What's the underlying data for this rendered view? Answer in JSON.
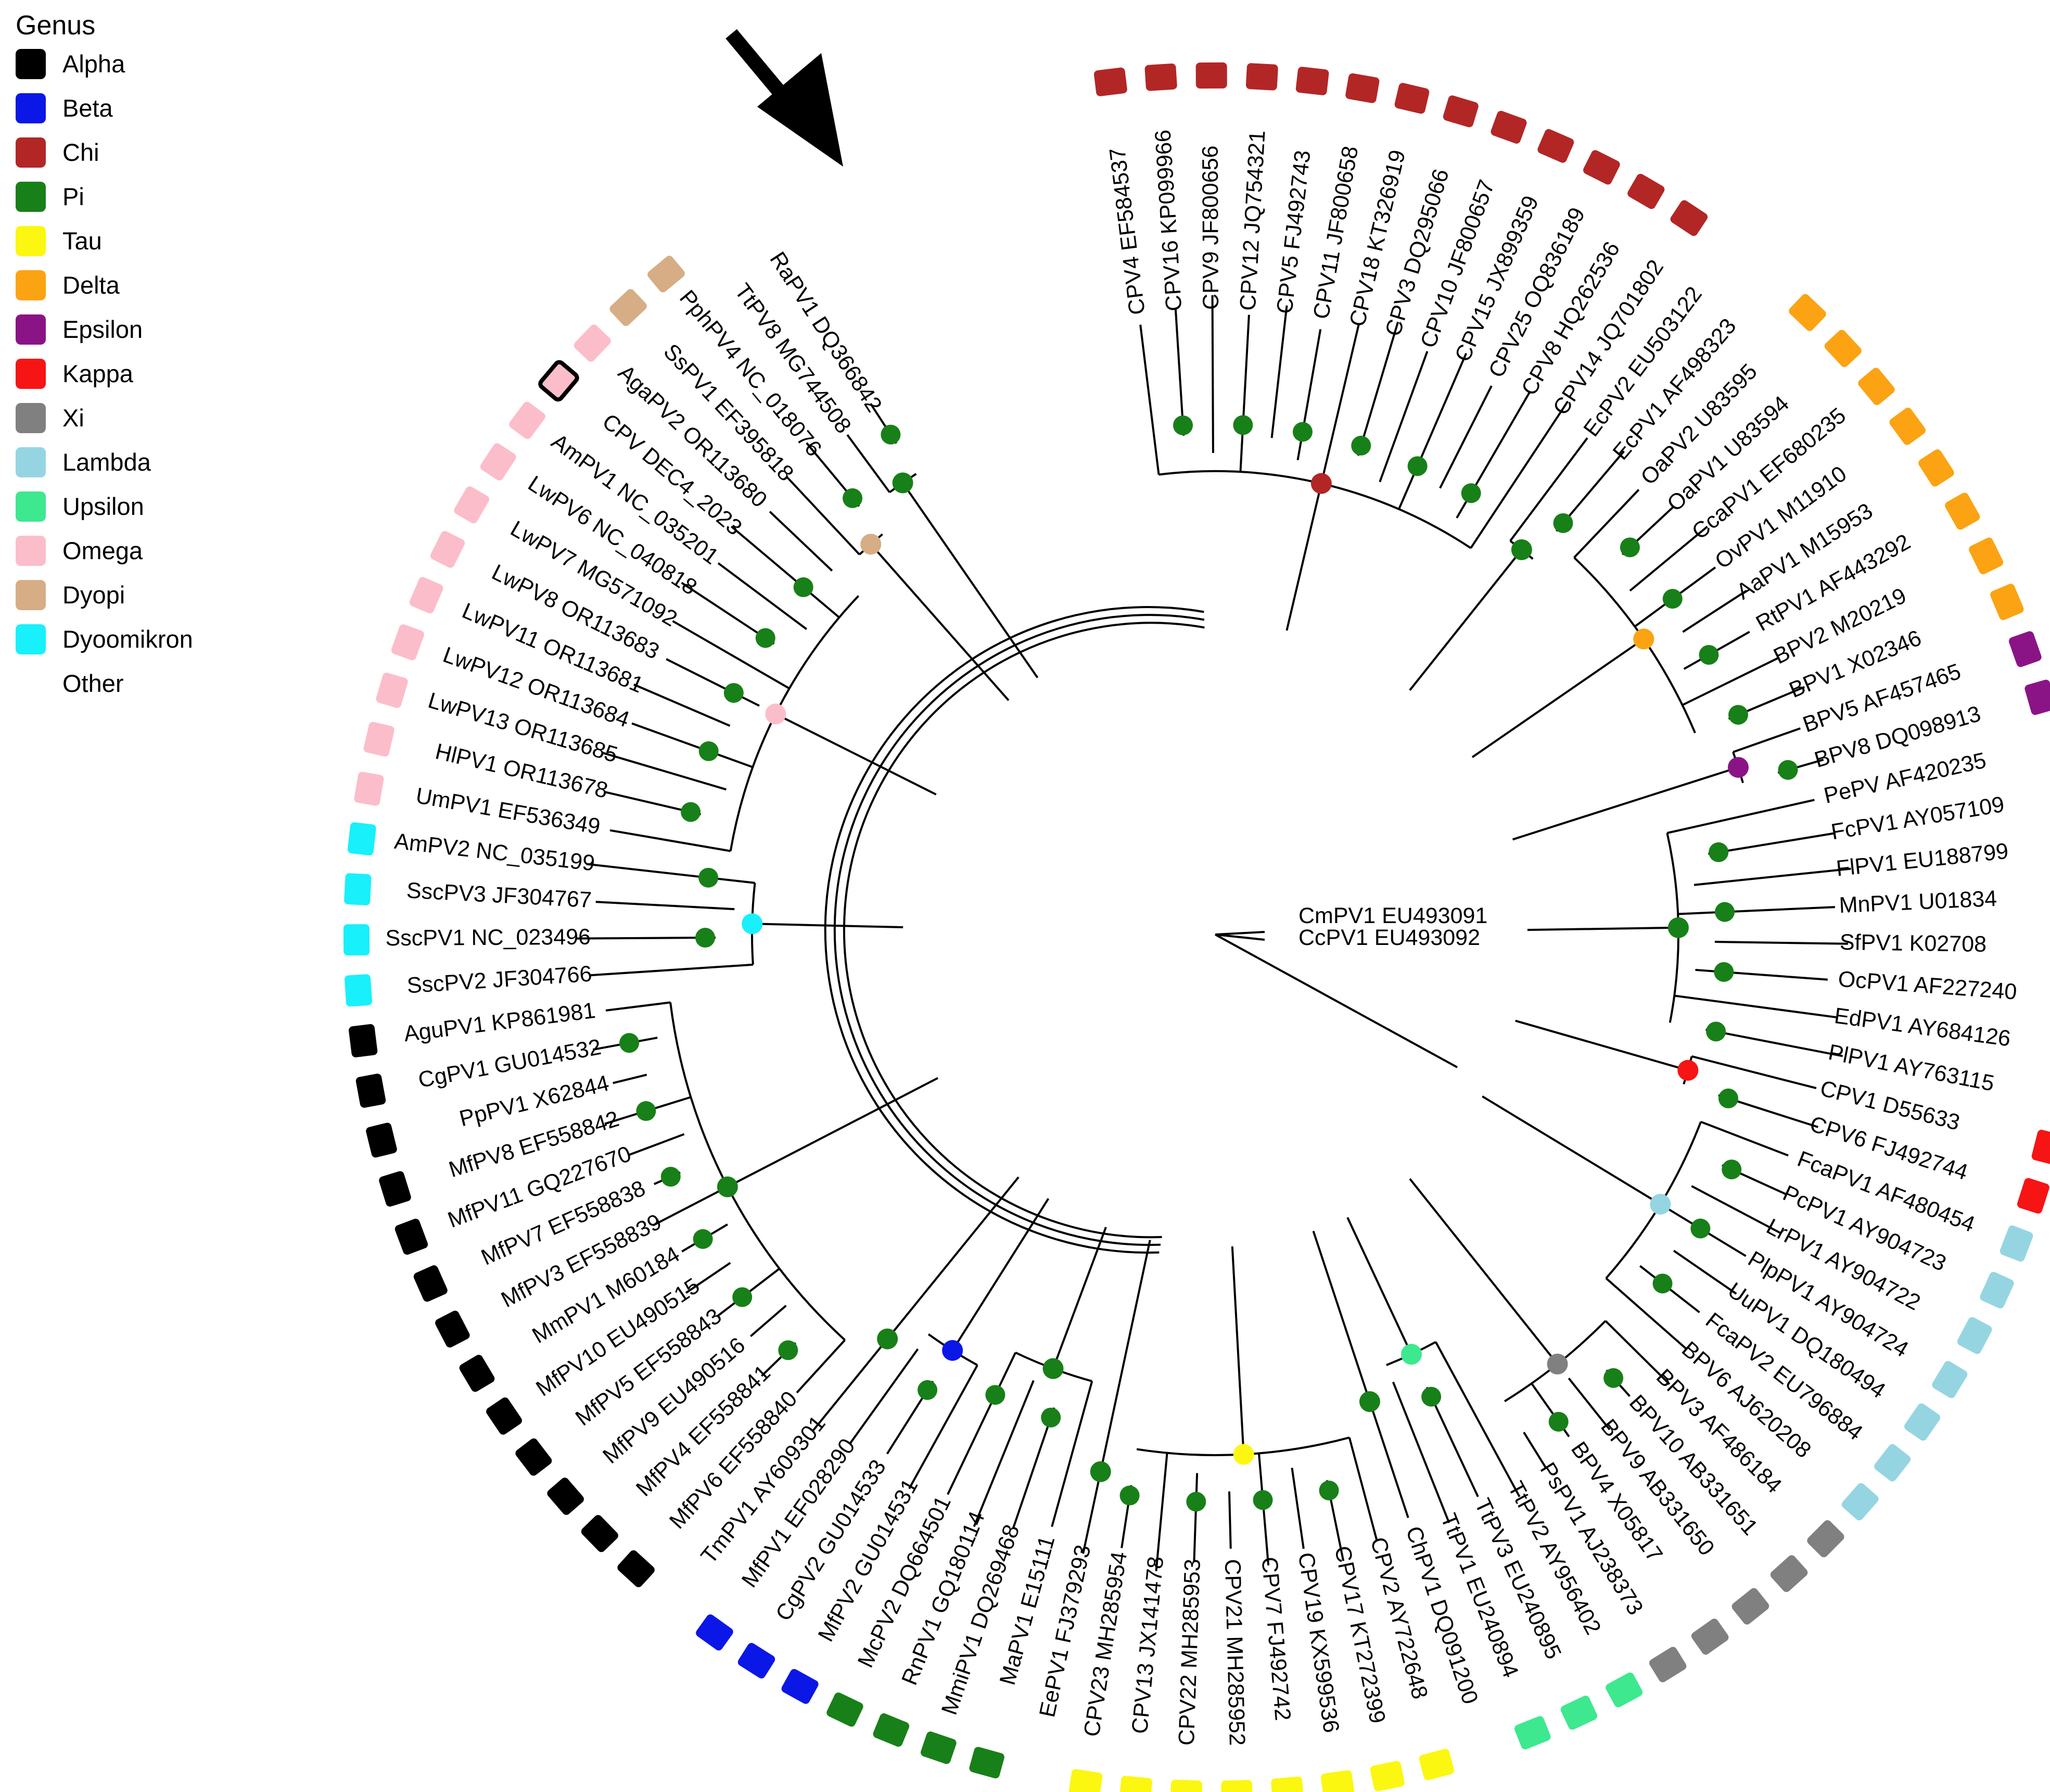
{
  "legend": {
    "title": "Genus",
    "items": [
      {
        "key": "alpha",
        "label": "Alpha",
        "color": "#000000"
      },
      {
        "key": "beta",
        "label": "Beta",
        "color": "#0b17e6"
      },
      {
        "key": "chi",
        "label": "Chi",
        "color": "#b32626"
      },
      {
        "key": "pi",
        "label": "Pi",
        "color": "#188018"
      },
      {
        "key": "tau",
        "label": "Tau",
        "color": "#fbf710"
      },
      {
        "key": "delta",
        "label": "Delta",
        "color": "#fba313"
      },
      {
        "key": "epsilon",
        "label": "Epsilon",
        "color": "#8a1486"
      },
      {
        "key": "kappa",
        "label": "Kappa",
        "color": "#f71414"
      },
      {
        "key": "xi",
        "label": "Xi",
        "color": "#808080"
      },
      {
        "key": "lambda",
        "label": "Lambda",
        "color": "#95d5e2"
      },
      {
        "key": "upsilon",
        "label": "Upsilon",
        "color": "#3de88f"
      },
      {
        "key": "omega",
        "label": "Omega",
        "color": "#fcbdca"
      },
      {
        "key": "dyopi",
        "label": "Dyopi",
        "color": "#d6ad85"
      },
      {
        "key": "dyoomikron",
        "label": "Dyoomikron",
        "color": "#18f0fb"
      },
      {
        "key": "other",
        "label": "Other",
        "color": "#ffffff"
      }
    ]
  },
  "root_labels": [
    "CmPV1 EU493091",
    "CcPV1 EU493092"
  ],
  "tips": [
    {
      "label": "CPV4 EF584537",
      "genus": "chi"
    },
    {
      "label": "CPV16 KP099966",
      "genus": "chi"
    },
    {
      "label": "CPV9 JF800656",
      "genus": "chi"
    },
    {
      "label": "CPV12 JQ754321",
      "genus": "chi"
    },
    {
      "label": "CPV5 FJ492743",
      "genus": "chi"
    },
    {
      "label": "CPV11 JF800658",
      "genus": "chi"
    },
    {
      "label": "CPV18 KT326919",
      "genus": "chi"
    },
    {
      "label": "CPV3 DQ295066",
      "genus": "chi"
    },
    {
      "label": "CPV10 JF800657",
      "genus": "chi"
    },
    {
      "label": "CPV15 JX899359",
      "genus": "chi"
    },
    {
      "label": "CPV25 OQ836189",
      "genus": "chi"
    },
    {
      "label": "CPV8 HQ262536",
      "genus": "chi"
    },
    {
      "label": "CPV14 JQ701802",
      "genus": "chi"
    },
    {
      "label": "EcPV2 EU503122",
      "genus": "other"
    },
    {
      "label": "EcPV1 AF498323",
      "genus": "other"
    },
    {
      "label": "OaPV2 U83595",
      "genus": "delta"
    },
    {
      "label": "OaPV1 U83594",
      "genus": "delta"
    },
    {
      "label": "CcaPV1 EF680235",
      "genus": "delta"
    },
    {
      "label": "OvPV1 M11910",
      "genus": "delta"
    },
    {
      "label": "AaPV1 M15953",
      "genus": "delta"
    },
    {
      "label": "RtPV1 AF443292",
      "genus": "delta"
    },
    {
      "label": "BPV2 M20219",
      "genus": "delta"
    },
    {
      "label": "BPV1 X02346",
      "genus": "delta"
    },
    {
      "label": "BPV5 AF457465",
      "genus": "epsilon"
    },
    {
      "label": "BPV8 DQ098913",
      "genus": "epsilon"
    },
    {
      "label": "PePV AF420235",
      "genus": "other"
    },
    {
      "label": "FcPV1 AY057109",
      "genus": "other"
    },
    {
      "label": "FlPV1 EU188799",
      "genus": "other"
    },
    {
      "label": "MnPV1 U01834",
      "genus": "other"
    },
    {
      "label": "SfPV1 K02708",
      "genus": "other"
    },
    {
      "label": "OcPV1 AF227240",
      "genus": "other"
    },
    {
      "label": "EdPV1 AY684126",
      "genus": "other"
    },
    {
      "label": "PlPV1 AY763115",
      "genus": "other"
    },
    {
      "label": "CPV1 D55633",
      "genus": "kappa"
    },
    {
      "label": "CPV6 FJ492744",
      "genus": "kappa"
    },
    {
      "label": "FcaPV1 AF480454",
      "genus": "lambda"
    },
    {
      "label": "PcPV1 AY904723",
      "genus": "lambda"
    },
    {
      "label": "LrPV1 AY904722",
      "genus": "lambda"
    },
    {
      "label": "PlpPV1 AY904724",
      "genus": "lambda"
    },
    {
      "label": "UuPV1 DQ180494",
      "genus": "lambda"
    },
    {
      "label": "FcaPV2 EU796884",
      "genus": "lambda"
    },
    {
      "label": "BPV6 AJ620208",
      "genus": "lambda"
    },
    {
      "label": "BPV3 AF486184",
      "genus": "xi"
    },
    {
      "label": "BPV10 AB331651",
      "genus": "xi"
    },
    {
      "label": "BPV9 AB331650",
      "genus": "xi"
    },
    {
      "label": "BPV4 X05817",
      "genus": "xi"
    },
    {
      "label": "PsPV1 AJ238373",
      "genus": "xi"
    },
    {
      "label": "TtPV2 AY956402",
      "genus": "upsilon"
    },
    {
      "label": "TtPV3 EU240895",
      "genus": "upsilon"
    },
    {
      "label": "TtPV1 EU240894",
      "genus": "upsilon"
    },
    {
      "label": "ChPV1 DQ091200",
      "genus": "other"
    },
    {
      "label": "CPV2 AY722648",
      "genus": "tau"
    },
    {
      "label": "CPV17 KT272399",
      "genus": "tau"
    },
    {
      "label": "CPV19 KX599536",
      "genus": "tau"
    },
    {
      "label": "CPV7 FJ492742",
      "genus": "tau"
    },
    {
      "label": "CPV21 MH285952",
      "genus": "tau"
    },
    {
      "label": "CPV22 MH285953",
      "genus": "tau"
    },
    {
      "label": "CPV13 JX141478",
      "genus": "tau"
    },
    {
      "label": "CPV23 MH285954",
      "genus": "tau"
    },
    {
      "label": "EePV1 FJ379293",
      "genus": "other"
    },
    {
      "label": "MaPV1 E15111",
      "genus": "pi"
    },
    {
      "label": "MmiPV1 DQ269468",
      "genus": "pi"
    },
    {
      "label": "RnPV1 GQ180114",
      "genus": "pi"
    },
    {
      "label": "McPV2 DQ664501",
      "genus": "pi"
    },
    {
      "label": "MfPV2 GU014531",
      "genus": "beta"
    },
    {
      "label": "CgPV2 GU014533",
      "genus": "beta"
    },
    {
      "label": "MfPV1 EF028290",
      "genus": "beta"
    },
    {
      "label": "TmPV1 AY609301",
      "genus": "other"
    },
    {
      "label": "MfPV6 EF558840",
      "genus": "alpha"
    },
    {
      "label": "MfPV4 EF558841",
      "genus": "alpha"
    },
    {
      "label": "MfPV9 EU490516",
      "genus": "alpha"
    },
    {
      "label": "MfPV5 EF558843",
      "genus": "alpha"
    },
    {
      "label": "MfPV10 EU490515",
      "genus": "alpha"
    },
    {
      "label": "MmPV1 M60184",
      "genus": "alpha"
    },
    {
      "label": "MfPV3 EF558839",
      "genus": "alpha"
    },
    {
      "label": "MfPV7 EF558838",
      "genus": "alpha"
    },
    {
      "label": "MfPV11 GQ227670",
      "genus": "alpha"
    },
    {
      "label": "MfPV8 EF558842",
      "genus": "alpha"
    },
    {
      "label": "PpPV1 X62844",
      "genus": "alpha"
    },
    {
      "label": "CgPV1 GU014532",
      "genus": "alpha"
    },
    {
      "label": "AguPV1 KP861981",
      "genus": "alpha"
    },
    {
      "label": "SscPV2 JF304766",
      "genus": "dyoomikron"
    },
    {
      "label": "SscPV1 NC_023496",
      "genus": "dyoomikron"
    },
    {
      "label": "SscPV3 JF304767",
      "genus": "dyoomikron"
    },
    {
      "label": "AmPV2 NC_035199",
      "genus": "dyoomikron"
    },
    {
      "label": "UmPV1 EF536349",
      "genus": "omega"
    },
    {
      "label": "HlPV1 OR113678",
      "genus": "omega"
    },
    {
      "label": "LwPV13 OR113685",
      "genus": "omega"
    },
    {
      "label": "LwPV12 OR113684",
      "genus": "omega"
    },
    {
      "label": "LwPV11 OR113681",
      "genus": "omega"
    },
    {
      "label": "LwPV8 OR113683",
      "genus": "omega"
    },
    {
      "label": "LwPV7 MG571092",
      "genus": "omega"
    },
    {
      "label": "LwPV6 NC_040818",
      "genus": "omega"
    },
    {
      "label": "AmPV1 NC_035201",
      "genus": "omega"
    },
    {
      "label": "CPV DEC4_2023",
      "genus": "omega",
      "highlighted": true
    },
    {
      "label": "AgaPV2 OR113680",
      "genus": "omega"
    },
    {
      "label": "SsPV1 EF395818",
      "genus": "dyopi"
    },
    {
      "label": "PphPV4 NC_018076",
      "genus": "dyopi"
    },
    {
      "label": "TtPV8 MG744508",
      "genus": "other"
    },
    {
      "label": "RaPV1 DQ366842",
      "genus": "other"
    }
  ]
}
